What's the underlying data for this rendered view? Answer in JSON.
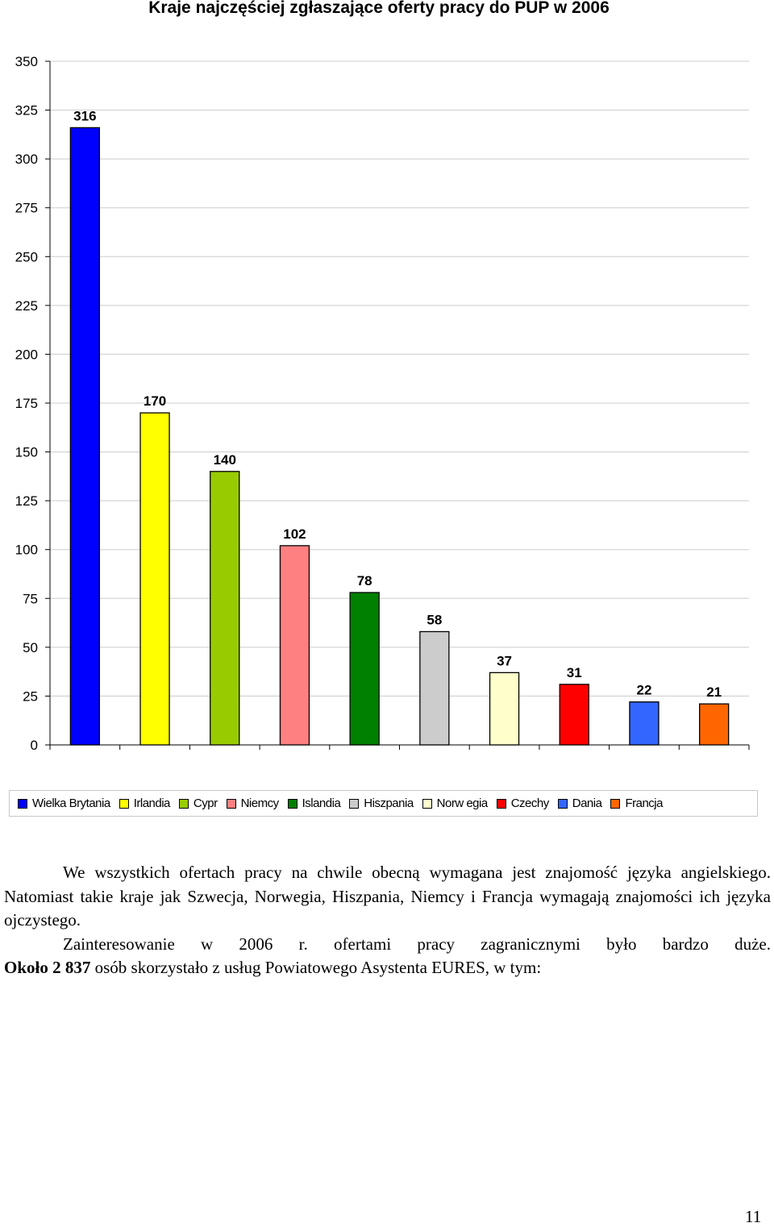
{
  "chart_data": {
    "type": "bar",
    "title": "Kraje najczęściej zgłaszające oferty pracy do PUP w 2006",
    "categories": [
      "Wielka Brytania",
      "Irlandia",
      "Cypr",
      "Niemcy",
      "Islandia",
      "Hiszpania",
      "Norwegia",
      "Czechy",
      "Dania",
      "Francja"
    ],
    "values": [
      316,
      170,
      140,
      102,
      78,
      58,
      37,
      31,
      22,
      21
    ],
    "colors": [
      "#0000ff",
      "#ffff00",
      "#99cc00",
      "#ff8080",
      "#008000",
      "#cccccc",
      "#ffffcc",
      "#ff0000",
      "#3366ff",
      "#ff6600"
    ],
    "yticks": [
      0,
      25,
      50,
      75,
      100,
      125,
      150,
      175,
      200,
      225,
      250,
      275,
      300,
      325,
      350
    ],
    "ylim": [
      0,
      350
    ],
    "xlabel": "",
    "ylabel": "",
    "grid": true,
    "legend_position": "bottom"
  },
  "legend_labels": [
    "Wielka Brytania",
    "Irlandia",
    "Cypr",
    "Niemcy",
    "Islandia",
    "Hiszpania",
    "Norw egia",
    "Czechy",
    "Dania",
    "Francja"
  ],
  "text": {
    "para1": "We wszystkich ofertach pracy na chwile obecną wymagana jest znajomość języka angielskiego. Natomiast takie kraje jak Szwecja, Norwegia, Hiszpania, Niemcy i Francja wymagają znajomości ich języka ojczystego.",
    "para2": "Zainteresowanie w 2006 r. ofertami pracy zagranicznymi było bardzo duże.",
    "para3_bold": "Około 2 837",
    "para3_rest": " osób skorzystało z usług Powiatowego Asystenta EURES, w tym:"
  },
  "page_number": "11"
}
